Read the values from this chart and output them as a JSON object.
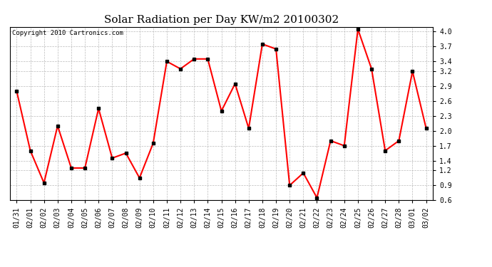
{
  "title": "Solar Radiation per Day KW/m2 20100302",
  "copyright_text": "Copyright 2010 Cartronics.com",
  "labels": [
    "01/31",
    "02/01",
    "02/02",
    "02/03",
    "02/04",
    "02/05",
    "02/06",
    "02/07",
    "02/08",
    "02/09",
    "02/10",
    "02/11",
    "02/12",
    "02/13",
    "02/14",
    "02/15",
    "02/16",
    "02/17",
    "02/18",
    "02/19",
    "02/20",
    "02/21",
    "02/22",
    "02/23",
    "02/24",
    "02/25",
    "02/26",
    "02/27",
    "02/28",
    "03/01",
    "03/02"
  ],
  "values": [
    2.8,
    1.6,
    0.95,
    2.1,
    1.25,
    1.25,
    2.45,
    1.45,
    1.55,
    1.05,
    1.75,
    3.4,
    3.25,
    3.45,
    3.45,
    2.4,
    2.95,
    2.05,
    3.75,
    3.65,
    0.9,
    1.15,
    0.65,
    1.8,
    1.7,
    4.05,
    3.25,
    1.6,
    1.8,
    3.2,
    2.05
  ],
  "line_color": "#ff0000",
  "marker_color": "#000000",
  "bg_color": "#ffffff",
  "grid_color": "#bbbbbb",
  "ylim": [
    0.6,
    4.1
  ],
  "yticks": [
    0.6,
    0.9,
    1.2,
    1.4,
    1.7,
    2.0,
    2.3,
    2.6,
    2.9,
    3.2,
    3.4,
    3.7,
    4.0
  ],
  "title_fontsize": 11,
  "tick_fontsize": 7,
  "copyright_fontsize": 6.5
}
